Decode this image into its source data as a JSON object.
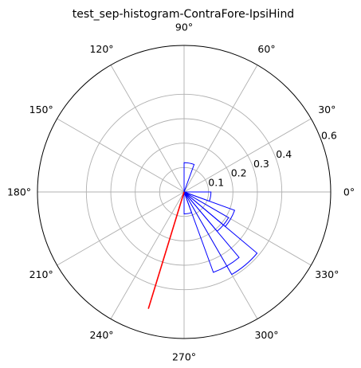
{
  "chart_data": {
    "type": "bar",
    "projection": "polar",
    "title": "test_sep-histogram-ContraFore-IpsiHind",
    "angle_unit": "degrees",
    "angle_ticks": [
      "0°",
      "30°",
      "60°",
      "90°",
      "120°",
      "150°",
      "180°",
      "210°",
      "240°",
      "270°",
      "300°",
      "330°"
    ],
    "angle_tick_values": [
      0,
      30,
      60,
      90,
      120,
      150,
      180,
      210,
      240,
      270,
      300,
      330
    ],
    "radial_ticks": [
      "0.1",
      "0.2",
      "0.3",
      "0.4",
      "0.6"
    ],
    "radial_tick_values": [
      0.1,
      0.2,
      0.3,
      0.4,
      0.6
    ],
    "rlim": [
      0,
      0.6
    ],
    "grid": true,
    "bin_width_deg": 20,
    "bins": [
      {
        "center_deg": 80,
        "value": 0.12
      },
      {
        "center_deg": 350,
        "value": 0.11
      },
      {
        "center_deg": 330,
        "value": 0.22
      },
      {
        "center_deg": 320,
        "value": 0.21
      },
      {
        "center_deg": 310,
        "value": 0.39
      },
      {
        "center_deg": 300,
        "value": 0.35
      },
      {
        "center_deg": 280,
        "value": 0.09
      }
    ],
    "mean_vector": {
      "angle_deg": 253,
      "length": 0.5,
      "color": "#ff0000"
    },
    "bar_color": "#0000ff"
  }
}
